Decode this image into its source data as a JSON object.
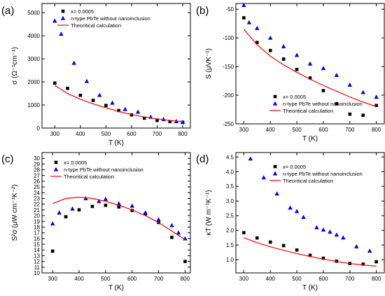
{
  "chart_data": [
    {
      "panel": "(a)",
      "type": "scatter",
      "xlabel": "T (K)",
      "ylabel": "σ (Ω⁻¹cm⁻¹)",
      "xlim": [
        250,
        830
      ],
      "ylim": [
        0,
        5400
      ],
      "xticks": [
        300,
        400,
        500,
        600,
        700,
        800
      ],
      "yticks": [
        0,
        1000,
        2000,
        3000,
        4000,
        5000
      ],
      "legend_position": "top-right",
      "series": [
        {
          "name": "x= 0.0005",
          "marker": "square",
          "color": "#000000",
          "x": [
            300,
            350,
            400,
            450,
            500,
            550,
            600,
            650,
            700,
            750,
            800
          ],
          "y": [
            1950,
            1720,
            1420,
            1200,
            980,
            760,
            570,
            430,
            330,
            280,
            250
          ]
        },
        {
          "name": "n-type PbTe without nanoinclusion",
          "marker": "triangle",
          "color": "#0000ff",
          "x": [
            300,
            325,
            375,
            425,
            475,
            525,
            575,
            625,
            675,
            725,
            775,
            800
          ],
          "y": [
            4650,
            4080,
            2820,
            2030,
            1430,
            1090,
            820,
            700,
            480,
            380,
            290,
            250
          ]
        },
        {
          "name": "Theoritical calculation",
          "marker": "line",
          "color": "#ff0000",
          "x": [
            300,
            350,
            400,
            450,
            500,
            550,
            600,
            650,
            700,
            750,
            800
          ],
          "y": [
            1850,
            1500,
            1250,
            1050,
            880,
            720,
            590,
            480,
            400,
            330,
            280
          ]
        }
      ]
    },
    {
      "panel": "(b)",
      "type": "scatter",
      "xlabel": "T (K)",
      "ylabel": "S (μVK⁻¹)",
      "xlim": [
        270,
        830
      ],
      "ylim": [
        -250,
        -40
      ],
      "xticks": [
        300,
        400,
        500,
        600,
        700,
        800
      ],
      "yticks": [
        -250,
        -200,
        -150,
        -100,
        -50
      ],
      "legend_position": "bottom-right",
      "series": [
        {
          "name": "x= 0.0005",
          "marker": "square",
          "color": "#000000",
          "x": [
            300,
            350,
            400,
            450,
            500,
            550,
            600,
            650,
            700,
            750,
            800
          ],
          "y": [
            -65,
            -108,
            -122,
            -137,
            -155,
            -170,
            -192,
            -215,
            -233,
            -235,
            -218
          ]
        },
        {
          "name": "n-type PbTe without nanoinclusion",
          "marker": "triangle",
          "color": "#0000ff",
          "x": [
            300,
            320,
            350,
            400,
            450,
            500,
            550,
            600,
            650,
            700,
            750,
            800
          ],
          "y": [
            -43,
            -73,
            -83,
            -100,
            -115,
            -130,
            -145,
            -153,
            -165,
            -182,
            -195,
            -203
          ]
        },
        {
          "name": "Theoritical calculation",
          "marker": "line",
          "color": "#ff0000",
          "x": [
            300,
            350,
            400,
            450,
            500,
            550,
            600,
            650,
            700,
            750,
            800
          ],
          "y": [
            -85,
            -112,
            -132,
            -147,
            -160,
            -172,
            -183,
            -193,
            -203,
            -212,
            -220
          ]
        }
      ]
    },
    {
      "panel": "(c)",
      "type": "scatter",
      "xlabel": "T (K)",
      "ylabel": "S²σ (μW cm⁻¹K⁻²)",
      "xlim": [
        260,
        820
      ],
      "ylim": [
        10,
        31
      ],
      "xticks": [
        300,
        400,
        500,
        600,
        700,
        800
      ],
      "yticks": [
        10,
        11,
        12,
        13,
        14,
        15,
        16,
        17,
        18,
        19,
        20,
        21,
        22,
        23,
        24,
        25,
        26,
        27,
        28,
        29,
        30
      ],
      "legend_position": "top-left",
      "series": [
        {
          "name": "x= 0.0005",
          "marker": "square",
          "color": "#000000",
          "x": [
            300,
            350,
            400,
            450,
            500,
            550,
            600,
            650,
            700,
            750,
            800
          ],
          "y": [
            13.8,
            19.8,
            21.0,
            21.6,
            21.8,
            21.5,
            20.9,
            20.3,
            18.8,
            16.2,
            12.0
          ]
        },
        {
          "name": "n-type PbTe without nanoinclusion",
          "marker": "triangle",
          "color": "#0000ff",
          "x": [
            300,
            325,
            375,
            425,
            475,
            500,
            550,
            600,
            650,
            700,
            750,
            775,
            800
          ],
          "y": [
            18.6,
            20.5,
            21.2,
            23.0,
            22.5,
            22.9,
            22.1,
            21.7,
            20.5,
            19.3,
            18.3,
            17.0,
            16.0
          ]
        },
        {
          "name": "Theoritical calculation",
          "marker": "line",
          "color": "#ff0000",
          "x": [
            300,
            350,
            400,
            450,
            500,
            550,
            600,
            650,
            700,
            750,
            800
          ],
          "y": [
            22.1,
            23.0,
            23.2,
            23.0,
            22.5,
            21.8,
            21.0,
            20.0,
            18.8,
            17.3,
            15.8
          ]
        }
      ]
    },
    {
      "panel": "(d)",
      "type": "scatter",
      "xlabel": "T (K)",
      "ylabel": "κT (W m⁻¹K⁻¹)",
      "xlim": [
        270,
        830
      ],
      "ylim": [
        0.55,
        4.65
      ],
      "xticks": [
        300,
        400,
        500,
        600,
        700,
        800
      ],
      "yticks": [
        1.0,
        1.5,
        2.0,
        2.5,
        3.0,
        3.5,
        4.0,
        4.5
      ],
      "ytick_labels": [
        "1.0",
        "1.5",
        "2.0",
        "2.5",
        "3.0",
        "3.5",
        "4.0",
        "4.5"
      ],
      "legend_position": "top-right",
      "series": [
        {
          "name": "x= 0.0005",
          "marker": "square",
          "color": "#000000",
          "x": [
            300,
            350,
            400,
            450,
            500,
            550,
            600,
            650,
            700,
            750,
            800
          ],
          "y": [
            1.92,
            1.74,
            1.6,
            1.48,
            1.33,
            1.15,
            1.05,
            0.95,
            0.87,
            0.85,
            0.93
          ]
        },
        {
          "name": "n-type PbTe without nanoinclusion",
          "marker": "triangle",
          "color": "#0000ff",
          "x": [
            325,
            375,
            425,
            475,
            500,
            525,
            575,
            600,
            625,
            650,
            675,
            725,
            775
          ],
          "y": [
            4.44,
            3.8,
            3.25,
            2.77,
            2.65,
            2.45,
            2.1,
            2.02,
            1.95,
            1.85,
            1.75,
            1.45,
            1.3
          ]
        },
        {
          "name": "Theoritical calculation",
          "marker": "line",
          "color": "#ff0000",
          "x": [
            300,
            350,
            400,
            450,
            500,
            550,
            600,
            650,
            700,
            750,
            800
          ],
          "y": [
            1.75,
            1.58,
            1.44,
            1.32,
            1.21,
            1.11,
            1.02,
            0.94,
            0.87,
            0.82,
            0.78
          ]
        }
      ]
    }
  ]
}
